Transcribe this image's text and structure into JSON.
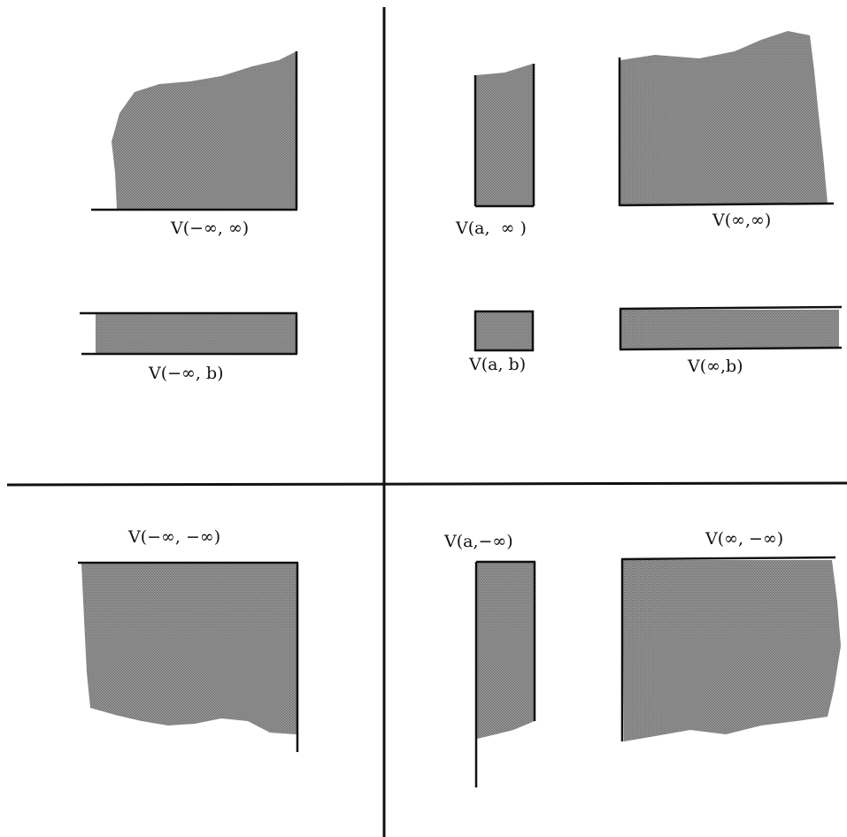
{
  "colors": {
    "ink": "#111111",
    "shade": "#8a8a8a",
    "background": "#ffffff"
  },
  "regions": {
    "neg_inf_inf": "V(−∞, ∞)",
    "a_inf": "V(a,  ∞ )",
    "inf_inf": "V(∞,∞)",
    "neg_inf_b": "V(−∞, b)",
    "a_b": "V(a, b)",
    "inf_b": "V(∞,b)",
    "neg_inf_neg_inf": "V(−∞, −∞)",
    "a_neg_inf": "V(a,−∞)",
    "inf_neg_inf": "V(∞, −∞)"
  }
}
